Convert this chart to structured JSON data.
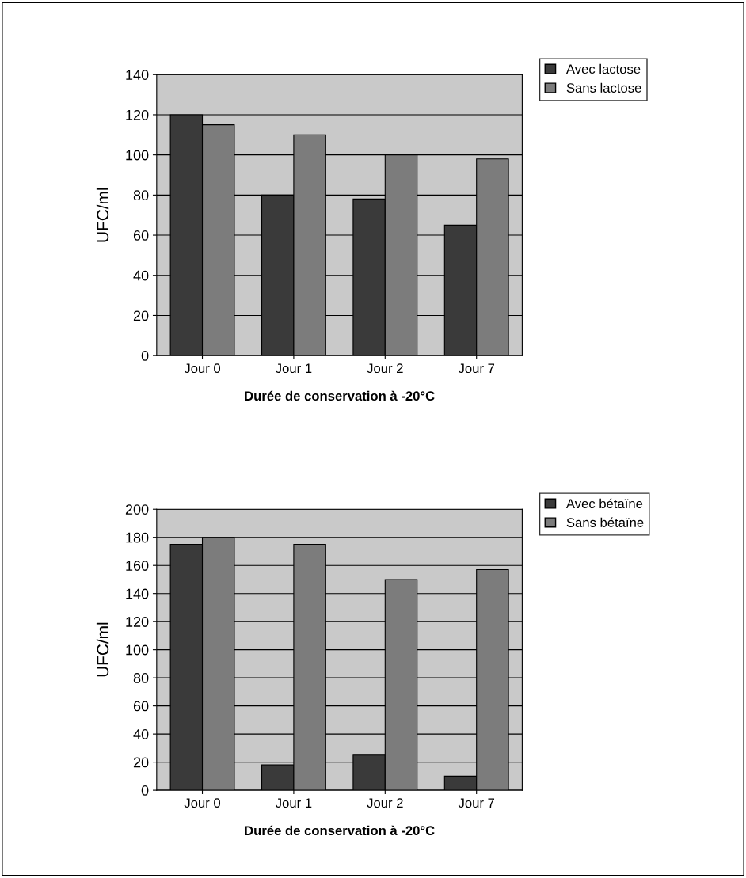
{
  "chart_data": [
    {
      "type": "bar",
      "categories": [
        "Jour 0",
        "Jour 1",
        "Jour 2",
        "Jour 7"
      ],
      "xlabel": "Durée de conservation à -20°C",
      "ylabel": "UFC/ml",
      "ylim": [
        0,
        140
      ],
      "yticks": [
        0,
        20,
        40,
        60,
        80,
        100,
        120,
        140
      ],
      "grid": "y",
      "legend": "top right",
      "series": [
        {
          "name": "Avec lactose",
          "color": "#3a3a3a",
          "values": [
            120,
            80,
            78,
            65
          ]
        },
        {
          "name": "Sans lactose",
          "color": "#7c7c7c",
          "values": [
            115,
            110,
            100,
            98
          ]
        }
      ]
    },
    {
      "type": "bar",
      "categories": [
        "Jour 0",
        "Jour 1",
        "Jour 2",
        "Jour 7"
      ],
      "xlabel": "Durée de conservation à -20°C",
      "ylabel": "UFC/ml",
      "ylim": [
        0,
        200
      ],
      "yticks": [
        0,
        20,
        40,
        60,
        80,
        100,
        120,
        140,
        160,
        180,
        200
      ],
      "grid": "y",
      "legend": "top right",
      "series": [
        {
          "name": "Avec bétaïne",
          "color": "#3a3a3a",
          "values": [
            175,
            18,
            25,
            10
          ]
        },
        {
          "name": "Sans bétaïne",
          "color": "#7c7c7c",
          "values": [
            180,
            175,
            150,
            157
          ]
        }
      ]
    }
  ]
}
